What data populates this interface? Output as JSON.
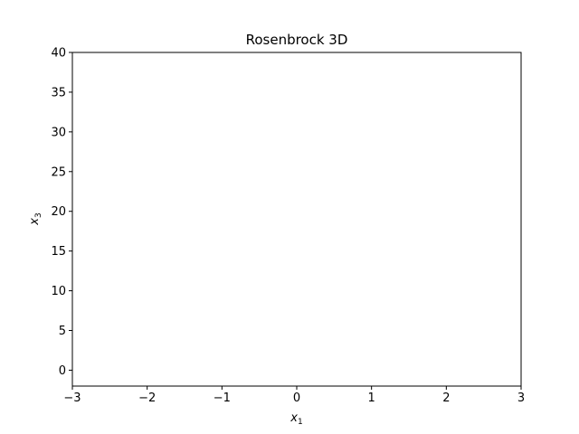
{
  "chart_data": {
    "type": "scatter",
    "title": "Rosenbrock 3D",
    "xlabel": {
      "base": "x",
      "sub": "1"
    },
    "ylabel": {
      "base": "x",
      "sub": "3"
    },
    "xlim": [
      -3,
      3
    ],
    "ylim": [
      -2,
      40
    ],
    "x_ticks": [
      -3,
      -2,
      -1,
      0,
      1,
      2,
      3
    ],
    "x_tick_labels": [
      "−3",
      "−2",
      "−1",
      "0",
      "1",
      "2",
      "3"
    ],
    "y_ticks": [
      0,
      5,
      10,
      15,
      20,
      25,
      30,
      35,
      40
    ],
    "y_tick_labels": [
      "0",
      "5",
      "10",
      "15",
      "20",
      "25",
      "30",
      "35",
      "40"
    ],
    "grid": false,
    "series": []
  }
}
